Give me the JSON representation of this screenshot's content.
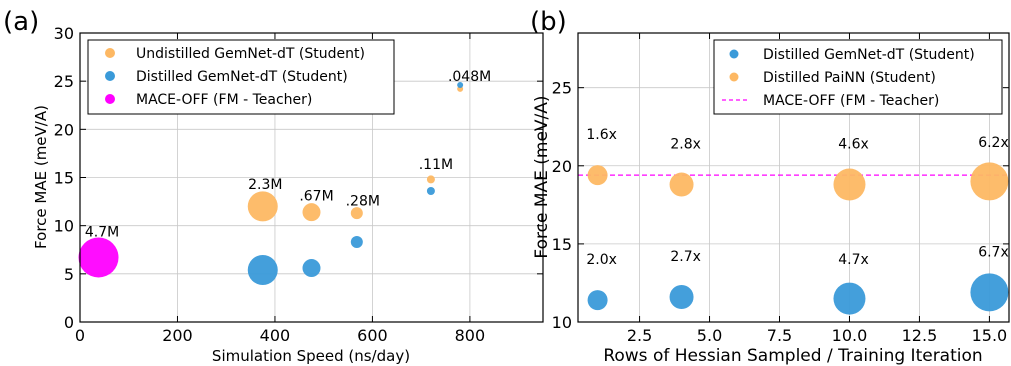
{
  "chart_data": [
    {
      "type": "scatter",
      "panel_label": "(a)",
      "xlabel": "Simulation Speed (ns/day)",
      "ylabel": "Force MAE (meV/A)",
      "xlim": [
        0,
        950
      ],
      "ylim": [
        0,
        30
      ],
      "xticks": [
        0,
        200,
        400,
        600,
        800
      ],
      "yticks": [
        0,
        5,
        10,
        15,
        20,
        25,
        30
      ],
      "grid": true,
      "legend_position": "top-left",
      "series": [
        {
          "name": "Undistilled GemNet-dT (Student)",
          "color": "#fdb863",
          "points": [
            {
              "x": 375,
              "y": 12.0,
              "size": 15
            },
            {
              "x": 475,
              "y": 11.4,
              "size": 9
            },
            {
              "x": 568,
              "y": 11.3,
              "size": 6
            },
            {
              "x": 720,
              "y": 14.8,
              "size": 4
            },
            {
              "x": 780,
              "y": 24.2,
              "size": 3
            }
          ]
        },
        {
          "name": "Distilled GemNet-dT (Student)",
          "color": "#3a9ad9",
          "points": [
            {
              "x": 375,
              "y": 5.4,
              "size": 15
            },
            {
              "x": 475,
              "y": 5.6,
              "size": 9
            },
            {
              "x": 568,
              "y": 8.3,
              "size": 6
            },
            {
              "x": 720,
              "y": 13.6,
              "size": 4
            },
            {
              "x": 780,
              "y": 24.6,
              "size": 3
            }
          ]
        },
        {
          "name": "MACE-OFF (FM - Teacher)",
          "color": "#ff00ff",
          "points": [
            {
              "x": 38,
              "y": 6.7,
              "size": 20
            }
          ]
        }
      ],
      "annotations": [
        {
          "text": "4.7M",
          "x": 10,
          "y": 8.9
        },
        {
          "text": "2.3M",
          "x": 345,
          "y": 13.8
        },
        {
          "text": ".67M",
          "x": 450,
          "y": 12.6
        },
        {
          "text": ".28M",
          "x": 545,
          "y": 12.1
        },
        {
          "text": ".11M",
          "x": 695,
          "y": 15.9
        },
        {
          "text": ".048M",
          "x": 755,
          "y": 25.0
        }
      ]
    },
    {
      "type": "scatter",
      "panel_label": "(b)",
      "xlabel": "Rows of Hessian Sampled / Training Iteration",
      "ylabel": "Force MAE (meV/A)",
      "xlim": [
        0.3,
        15.7
      ],
      "ylim": [
        10,
        28.5
      ],
      "xticks": [
        2.5,
        5.0,
        7.5,
        10.0,
        12.5,
        15.0
      ],
      "yticks": [
        10,
        15,
        20,
        25
      ],
      "grid": true,
      "legend_position": "top-right",
      "series": [
        {
          "name": "Distilled GemNet-dT (Student)",
          "color": "#3a9ad9",
          "points": [
            {
              "x": 1,
              "y": 11.4,
              "size": 10
            },
            {
              "x": 4,
              "y": 11.6,
              "size": 12
            },
            {
              "x": 10,
              "y": 11.5,
              "size": 16
            },
            {
              "x": 15,
              "y": 11.9,
              "size": 19
            }
          ]
        },
        {
          "name": "Distilled PaiNN (Student)",
          "color": "#fdb863",
          "points": [
            {
              "x": 1,
              "y": 19.4,
              "size": 10
            },
            {
              "x": 4,
              "y": 18.8,
              "size": 12
            },
            {
              "x": 10,
              "y": 18.8,
              "size": 16
            },
            {
              "x": 15,
              "y": 19.0,
              "size": 19
            }
          ]
        }
      ],
      "reference_line": {
        "name": "MACE-OFF (FM - Teacher)",
        "y": 19.4,
        "color": "#ff00ff"
      },
      "annotations": [
        {
          "text": "1.6x",
          "x": 0.6,
          "y": 21.7
        },
        {
          "text": "2.8x",
          "x": 3.6,
          "y": 21.1
        },
        {
          "text": "4.6x",
          "x": 9.6,
          "y": 21.1
        },
        {
          "text": "6.2x",
          "x": 14.6,
          "y": 21.2
        },
        {
          "text": "2.0x",
          "x": 0.6,
          "y": 13.7
        },
        {
          "text": "2.7x",
          "x": 3.6,
          "y": 13.9
        },
        {
          "text": "4.7x",
          "x": 9.6,
          "y": 13.7
        },
        {
          "text": "6.7x",
          "x": 14.6,
          "y": 14.2
        }
      ]
    }
  ]
}
